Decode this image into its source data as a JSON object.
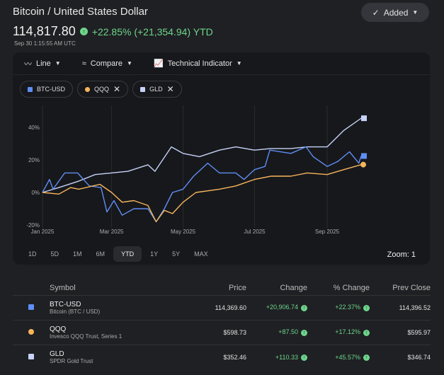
{
  "header": {
    "title": "Bitcoin / United States Dollar",
    "added_label": "Added",
    "price": "114,817.80",
    "change": "+22.85% (+21,354.94) YTD",
    "timestamp": "Sep 30 1:15:55 AM UTC"
  },
  "toolbar": {
    "line": "Line",
    "compare": "Compare",
    "indicator": "Technical Indicator"
  },
  "chips": [
    {
      "label": "BTC-USD",
      "color": "#5f8ef5"
    },
    {
      "label": "QQQ",
      "color": "#f6b55c"
    },
    {
      "label": "GLD",
      "color": "#c5d3f7"
    }
  ],
  "ranges": [
    "1D",
    "5D",
    "1M",
    "6M",
    "YTD",
    "1Y",
    "5Y",
    "MAX"
  ],
  "active_range": "YTD",
  "zoom_label": "Zoom: 1",
  "table": {
    "headers": [
      "Symbol",
      "Price",
      "Change",
      "% Change",
      "Prev Close"
    ],
    "rows": [
      {
        "symbol": "BTC-USD",
        "name": "Bitcoin (BTC / USD)",
        "price": "114,369.60",
        "change": "+20,906.74",
        "pct": "+22.37%",
        "prev": "114,396.52",
        "color": "#5f8ef5",
        "shape": "square"
      },
      {
        "symbol": "QQQ",
        "name": "Invesco QQQ Trust, Series 1",
        "price": "$598.73",
        "change": "+87.50",
        "pct": "+17.12%",
        "prev": "$595.97",
        "color": "#f6b55c",
        "shape": "circle"
      },
      {
        "symbol": "GLD",
        "name": "SPDR Gold Trust",
        "price": "$352.46",
        "change": "+110.33",
        "pct": "+45.57%",
        "prev": "$346.74",
        "color": "#c5d3f7",
        "shape": "square"
      }
    ]
  },
  "chart_data": {
    "type": "line",
    "ylim": [
      -20,
      50
    ],
    "yticks": [
      -20,
      0,
      20,
      40
    ],
    "ytick_labels": [
      "-20%",
      "0%",
      "20%",
      "40%"
    ],
    "xticks": [
      "2025-01-01",
      "2025-03-01",
      "2025-05-01",
      "2025-07-01",
      "2025-09-01"
    ],
    "xtick_labels": [
      "Jan 2025",
      "Mar 2025",
      "May 2025",
      "Jul 2025",
      "Sep 2025"
    ],
    "xlim": [
      "2025-01-01",
      "2025-09-30"
    ],
    "grid": "vertical",
    "series": [
      {
        "name": "GLD",
        "color": "#c5d3f7",
        "marker": "square",
        "x": [
          "2025-01-01",
          "2025-01-15",
          "2025-02-01",
          "2025-02-15",
          "2025-03-01",
          "2025-03-15",
          "2025-04-01",
          "2025-04-07",
          "2025-04-21",
          "2025-05-01",
          "2025-05-15",
          "2025-06-01",
          "2025-06-15",
          "2025-07-01",
          "2025-07-15",
          "2025-08-01",
          "2025-08-15",
          "2025-09-01",
          "2025-09-15",
          "2025-09-30"
        ],
        "y": [
          0,
          3,
          7,
          11,
          12,
          13,
          17,
          13,
          28,
          24,
          22,
          26,
          28,
          26,
          27,
          27,
          28,
          28,
          38,
          45.6
        ]
      },
      {
        "name": "BTC-USD",
        "color": "#5f8ef5",
        "marker": "square",
        "x": [
          "2025-01-01",
          "2025-01-07",
          "2025-01-10",
          "2025-01-20",
          "2025-01-31",
          "2025-02-10",
          "2025-02-20",
          "2025-02-25",
          "2025-03-03",
          "2025-03-10",
          "2025-03-20",
          "2025-04-01",
          "2025-04-08",
          "2025-04-15",
          "2025-04-22",
          "2025-05-01",
          "2025-05-10",
          "2025-05-22",
          "2025-06-01",
          "2025-06-15",
          "2025-06-22",
          "2025-07-01",
          "2025-07-10",
          "2025-07-14",
          "2025-08-01",
          "2025-08-14",
          "2025-08-20",
          "2025-09-01",
          "2025-09-10",
          "2025-09-20",
          "2025-09-28",
          "2025-09-30"
        ],
        "y": [
          0,
          8,
          2,
          12,
          12,
          4,
          3,
          -12,
          -5,
          -14,
          -10,
          -10,
          -18,
          -10,
          0,
          2,
          10,
          18,
          12,
          12,
          8,
          14,
          16,
          26,
          24,
          28,
          22,
          16,
          19,
          25,
          18,
          22.4
        ]
      },
      {
        "name": "QQQ",
        "color": "#f6b55c",
        "marker": "circle",
        "x": [
          "2025-01-01",
          "2025-01-15",
          "2025-01-25",
          "2025-02-01",
          "2025-02-19",
          "2025-03-01",
          "2025-03-10",
          "2025-03-20",
          "2025-04-01",
          "2025-04-08",
          "2025-04-15",
          "2025-04-22",
          "2025-05-01",
          "2025-05-12",
          "2025-06-01",
          "2025-06-15",
          "2025-07-01",
          "2025-07-15",
          "2025-08-01",
          "2025-08-15",
          "2025-09-01",
          "2025-09-15",
          "2025-09-30"
        ],
        "y": [
          0,
          -1,
          3,
          2,
          5,
          0,
          -6,
          -5,
          -8,
          -18,
          -11,
          -13,
          -6,
          0,
          2,
          4,
          8,
          10,
          10,
          12,
          11,
          14,
          17.1
        ]
      }
    ]
  }
}
